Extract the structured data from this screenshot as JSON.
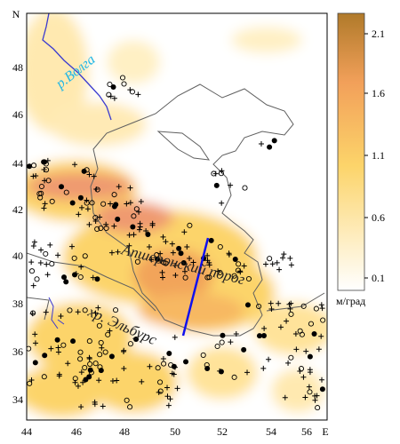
{
  "axes": {
    "x_ticks": [
      "44",
      "46",
      "48",
      "50",
      "52",
      "54",
      "56"
    ],
    "x_end_label": "E",
    "y_ticks": [
      "48",
      "46",
      "44",
      "42",
      "40",
      "38",
      "36",
      "34"
    ],
    "y_top_label": "N"
  },
  "colorbar": {
    "ticks": [
      "2.1",
      "1.6",
      "1.1",
      "0.6",
      "0.1"
    ],
    "unit": "м/град",
    "colors": [
      "#b07a2a",
      "#f2a05a",
      "#fcd46a",
      "#ffffff"
    ]
  },
  "labels": {
    "river": "р.Волга",
    "sill": "Апшеронский порог",
    "range": "хр. Эльбурс"
  },
  "colors": {
    "river": "#3a3ad0",
    "coast": "#606060",
    "profile": "#1010ee",
    "anomaly_high": "#e8906a",
    "anomaly_mid": "#fcd46a"
  }
}
